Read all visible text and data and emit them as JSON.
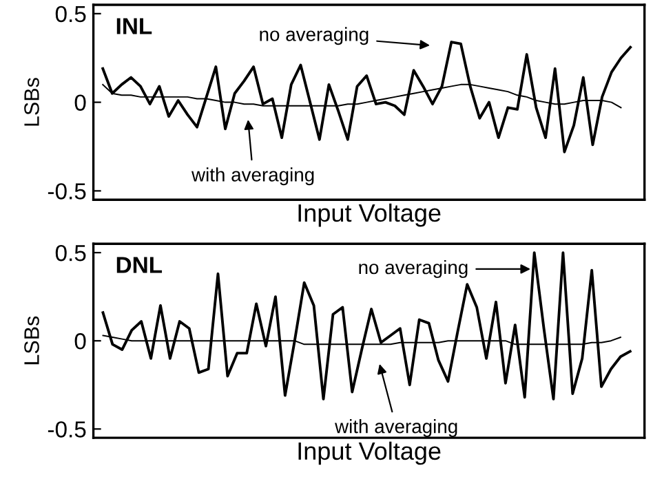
{
  "chart_data": [
    {
      "type": "line",
      "title": "INL",
      "xlabel": "Input Voltage",
      "ylabel": "LSBs",
      "categories": [
        null,
        null,
        null,
        null,
        null,
        null,
        null,
        null,
        null,
        null,
        null,
        null,
        null,
        null,
        null,
        null,
        null,
        null,
        null,
        null,
        null,
        null,
        null,
        null,
        null,
        null,
        null,
        null,
        null,
        null,
        null,
        null,
        null,
        null,
        null,
        null,
        null,
        null,
        null,
        null,
        null,
        null,
        null,
        null,
        null,
        null,
        null,
        null,
        null,
        null,
        null,
        null,
        null,
        null,
        null,
        null,
        null
      ],
      "series": [
        {
          "color": "#000000",
          "values": [
            0.19,
            0.05,
            0.1,
            0.14,
            0.09,
            -0.01,
            0.09,
            -0.08,
            0.01,
            -0.07,
            -0.14,
            0.03,
            0.2,
            -0.15,
            0.05,
            0.12,
            0.2,
            -0.01,
            0.02,
            -0.2,
            0.1,
            0.21,
            0.0,
            -0.21,
            0.1,
            -0.05,
            -0.21,
            0.09,
            0.15,
            -0.01,
            0.0,
            -0.02,
            -0.07,
            0.18,
            0.09,
            -0.01,
            0.09,
            0.34,
            0.33,
            0.09,
            -0.09,
            0.0,
            -0.2,
            -0.03,
            -0.04,
            0.27,
            -0.03,
            -0.2,
            0.19,
            -0.28,
            -0.13,
            0.14,
            -0.24,
            0.03,
            0.17,
            0.25,
            0.31
          ]
        },
        {
          "color": "#000000",
          "values": [
            0.1,
            0.05,
            0.04,
            0.04,
            0.03,
            0.03,
            0.03,
            0.03,
            0.03,
            0.03,
            0.02,
            0.02,
            0.01,
            0.0,
            0.0,
            -0.01,
            -0.01,
            -0.02,
            -0.02,
            -0.02,
            -0.02,
            -0.02,
            -0.02,
            -0.02,
            -0.02,
            -0.02,
            -0.01,
            -0.01,
            0.0,
            0.01,
            0.02,
            0.03,
            0.04,
            0.05,
            0.06,
            0.07,
            0.08,
            0.09,
            0.1,
            0.1,
            0.09,
            0.08,
            0.07,
            0.06,
            0.04,
            0.03,
            0.01,
            0.0,
            -0.01,
            -0.01,
            0.0,
            0.01,
            0.01,
            0.01,
            0.0,
            -0.03,
            null
          ]
        }
      ],
      "ylim": [
        -0.55,
        0.55
      ],
      "yticks": [
        0.5,
        0,
        -0.5
      ],
      "tick_labels": "y",
      "annotations": [
        "no averaging",
        "with averaging"
      ]
    },
    {
      "type": "line",
      "title": "DNL",
      "xlabel": "Input Voltage",
      "ylabel": "LSBs",
      "categories": [
        null,
        null,
        null,
        null,
        null,
        null,
        null,
        null,
        null,
        null,
        null,
        null,
        null,
        null,
        null,
        null,
        null,
        null,
        null,
        null,
        null,
        null,
        null,
        null,
        null,
        null,
        null,
        null,
        null,
        null,
        null,
        null,
        null,
        null,
        null,
        null,
        null,
        null,
        null,
        null,
        null,
        null,
        null,
        null,
        null,
        null,
        null,
        null,
        null,
        null,
        null,
        null,
        null,
        null,
        null,
        null
      ],
      "series": [
        {
          "color": "#000000",
          "values": [
            0.16,
            -0.02,
            -0.05,
            0.06,
            0.11,
            -0.1,
            0.2,
            -0.1,
            0.11,
            0.07,
            -0.18,
            -0.16,
            0.38,
            -0.2,
            -0.07,
            -0.07,
            0.21,
            -0.03,
            0.25,
            -0.31,
            0.0,
            0.33,
            0.2,
            -0.33,
            0.15,
            0.19,
            -0.29,
            -0.05,
            0.18,
            -0.01,
            0.03,
            0.07,
            -0.25,
            0.12,
            0.1,
            -0.11,
            -0.23,
            0.05,
            0.32,
            0.19,
            -0.1,
            0.22,
            -0.24,
            0.09,
            -0.32,
            0.5,
            0.07,
            -0.33,
            0.5,
            -0.3,
            -0.1,
            0.4,
            -0.26,
            -0.16,
            -0.09,
            -0.06
          ]
        },
        {
          "color": "#000000",
          "values": [
            0.03,
            0.02,
            0.01,
            0.0,
            0.0,
            0.0,
            0.0,
            0.0,
            0.0,
            0.0,
            0.0,
            0.0,
            0.0,
            0.0,
            0.0,
            0.0,
            0.0,
            0.0,
            0.0,
            0.0,
            0.0,
            -0.02,
            -0.02,
            -0.02,
            -0.02,
            -0.02,
            -0.02,
            -0.02,
            -0.02,
            -0.02,
            -0.02,
            -0.01,
            -0.01,
            -0.01,
            -0.01,
            -0.01,
            0.0,
            0.0,
            0.0,
            0.0,
            0.0,
            0.0,
            0.0,
            -0.02,
            -0.02,
            -0.02,
            -0.02,
            -0.02,
            -0.02,
            -0.02,
            -0.02,
            -0.01,
            -0.01,
            0.0,
            0.02,
            null
          ]
        }
      ],
      "ylim": [
        -0.55,
        0.55
      ],
      "yticks": [
        0.5,
        0,
        -0.5
      ],
      "tick_labels": "y",
      "annotations": [
        "no averaging",
        "with averaging"
      ]
    }
  ]
}
